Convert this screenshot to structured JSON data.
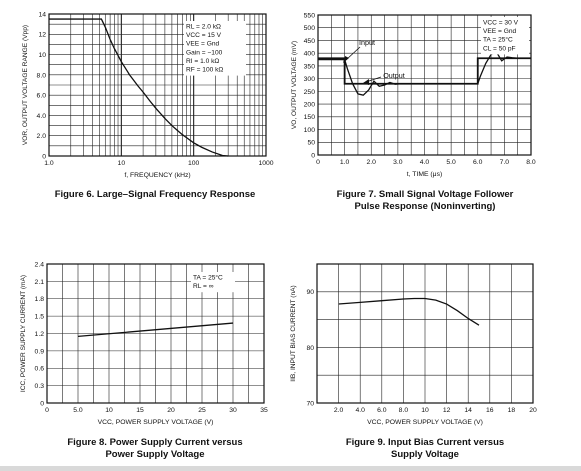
{
  "chart_data": [
    {
      "type": "line",
      "title": "",
      "caption": "Figure 6. Large–Signal Frequency Response",
      "xlabel": "f, FREQUENCY (kHz)",
      "ylabel": "V_OR, OUTPUT VOLTAGE RANGE (V_pp)",
      "ylabel_main": "V",
      "ylabel_sub": "OR",
      "ylabel_text": ", OUTPUT VOLTAGE RANGE (V",
      "ylabel_sub2": "pp",
      "ylabel_end": ")",
      "xscale": "log",
      "xlim": [
        1,
        1000
      ],
      "ylim": [
        0,
        14
      ],
      "x_ticks": [
        1,
        10,
        100,
        1000
      ],
      "x_tick_labels": [
        "1.0",
        "10",
        "100",
        "1000"
      ],
      "y_ticks": [
        0,
        2,
        4,
        6,
        8,
        10,
        12,
        14
      ],
      "y_tick_labels": [
        "0",
        "2.0",
        "4.0",
        "6.0",
        "8.0",
        "10",
        "12",
        "14"
      ],
      "grid": true,
      "legend": "none",
      "annotations": [
        "Rₗ = 2.0 kΩ",
        "Vᴄᴄ = 15 V",
        "Vᴇᴇ = Gnd",
        "Gain = −100",
        "Rᴵ = 1.0 kΩ",
        "Rᶠ = 100 kΩ"
      ],
      "annotation_lines": [
        "RL = 2.0 kΩ",
        "VCC = 15 V",
        "VEE = Gnd",
        "Gain = −100",
        "RI = 1.0 kΩ",
        "RF = 100 kΩ"
      ],
      "series": [
        {
          "x": [
            1,
            2,
            4,
            5.3,
            6,
            7,
            8,
            10,
            13,
            17,
            20,
            25,
            30,
            40,
            50,
            60,
            70,
            80,
            100,
            130,
            180,
            250,
            300
          ],
          "y": [
            13.5,
            13.5,
            13.5,
            13.5,
            12.7,
            11.5,
            10.6,
            9.3,
            8.0,
            6.9,
            6.3,
            5.4,
            4.7,
            3.7,
            3.0,
            2.5,
            2.1,
            1.8,
            1.3,
            0.85,
            0.4,
            0.05,
            0
          ]
        }
      ]
    },
    {
      "type": "line",
      "title": "",
      "caption": "Figure 7. Small Signal Voltage Follower Pulse Response (Noninverting)",
      "caption_lines": [
        "Figure 7. Small Signal Voltage Follower",
        "Pulse Response (Noninverting)"
      ],
      "xlabel": "t, TIME (μs)",
      "ylabel": "V_O, OUTPUT VOLTAGE (mV)",
      "xlim": [
        0,
        8.0
      ],
      "ylim": [
        0,
        550
      ],
      "x_ticks": [
        0,
        1,
        2,
        3,
        4,
        5,
        6,
        7,
        8
      ],
      "x_tick_labels": [
        "0",
        "1.0",
        "2.0",
        "3.0",
        "4.0",
        "5.0",
        "6.0",
        "7.0",
        "8.0"
      ],
      "y_ticks": [
        0,
        50,
        100,
        150,
        200,
        250,
        300,
        350,
        400,
        450,
        500,
        550
      ],
      "y_tick_labels": [
        "0",
        "50",
        "100",
        "150",
        "200",
        "250",
        "300",
        "350",
        "400",
        "450",
        "500",
        "550"
      ],
      "grid": true,
      "legend": "none",
      "annotation_lines": [
        "VCC = 30 V",
        "VEE = Gnd",
        "TA = 25°C",
        "CL = 50 pF"
      ],
      "series": [
        {
          "name": "Input",
          "x": [
            0,
            1.0,
            1.0,
            6.0,
            6.0,
            8.0
          ],
          "y": [
            380,
            380,
            280,
            280,
            380,
            380
          ]
        },
        {
          "name": "Output",
          "x": [
            0,
            1.0,
            1.1,
            1.3,
            1.5,
            1.7,
            1.9,
            2.1,
            2.3,
            2.5,
            2.7,
            2.9,
            3.1,
            3.3,
            6.0,
            6.1,
            6.3,
            6.5,
            6.7,
            6.9,
            7.1,
            7.3,
            7.5,
            8.0
          ],
          "y": [
            375,
            375,
            340,
            280,
            240,
            235,
            255,
            290,
            270,
            275,
            285,
            278,
            280,
            280,
            280,
            310,
            360,
            395,
            405,
            370,
            385,
            382,
            380,
            380
          ]
        }
      ]
    },
    {
      "type": "line",
      "title": "",
      "caption": "Figure 8. Power Supply Current versus Power Supply Voltage",
      "caption_lines": [
        "Figure 8. Power Supply Current versus",
        "Power Supply Voltage"
      ],
      "xlabel": "V_CC, POWER SUPPLY VOLTAGE (V)",
      "ylabel": "I_CC, POWER SUPPLY CURRENT (mA)",
      "xlim": [
        0,
        35
      ],
      "ylim": [
        0,
        2.4
      ],
      "x_ticks": [
        0,
        5,
        10,
        15,
        20,
        25,
        30,
        35
      ],
      "x_tick_labels": [
        "0",
        "5.0",
        "10",
        "15",
        "20",
        "25",
        "30",
        "35"
      ],
      "y_ticks": [
        0,
        0.3,
        0.6,
        0.9,
        1.2,
        1.5,
        1.8,
        2.1,
        2.4
      ],
      "y_tick_labels": [
        "0",
        "0.3",
        "0.6",
        "0.9",
        "1.2",
        "1.5",
        "1.8",
        "2.1",
        "2.4"
      ],
      "grid": true,
      "legend": "none",
      "annotation_lines": [
        "TA = 25°C",
        "RL = ∞"
      ],
      "series": [
        {
          "x": [
            5,
            30
          ],
          "y": [
            1.15,
            1.38
          ]
        }
      ]
    },
    {
      "type": "line",
      "title": "",
      "caption": "Figure 9. Input Bias Current versus Supply Voltage",
      "caption_lines": [
        "Figure 9. Input Bias Current versus",
        "Supply Voltage"
      ],
      "xlabel": "V_CC, POWER SUPPLY VOLTAGE (V)",
      "ylabel": "I_IB, INPUT BIAS CURRENT (nA)",
      "xlim": [
        0,
        20
      ],
      "ylim": [
        70,
        95
      ],
      "x_ticks": [
        0,
        2,
        4,
        6,
        8,
        10,
        12,
        14,
        16,
        18,
        20
      ],
      "x_tick_labels": [
        "",
        "2.0",
        "4.0",
        "6.0",
        "8.0",
        "10",
        "12",
        "14",
        "16",
        "18",
        "20"
      ],
      "y_ticks": [
        70,
        80,
        90
      ],
      "y_tick_labels": [
        "70",
        "80",
        "90"
      ],
      "grid": true,
      "legend": "none",
      "series": [
        {
          "x": [
            2,
            4,
            6,
            8,
            9,
            10,
            11,
            12,
            13,
            14,
            15
          ],
          "y": [
            87.8,
            88.1,
            88.4,
            88.7,
            88.8,
            88.8,
            88.5,
            87.8,
            86.6,
            85.2,
            84.0
          ]
        }
      ]
    }
  ]
}
